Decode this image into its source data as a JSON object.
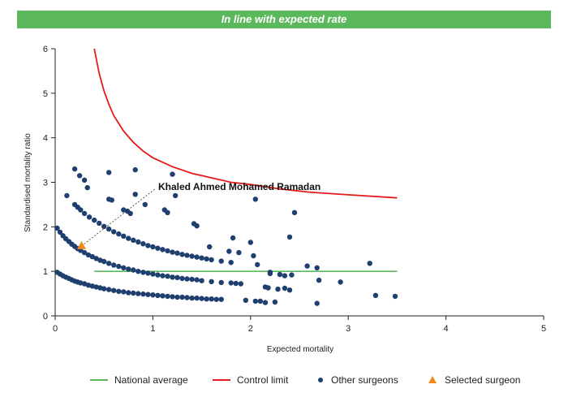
{
  "banner": {
    "text": "In line with expected rate",
    "color": "#5cb85c"
  },
  "chart_data": {
    "type": "scatter",
    "xlabel": "Expected mortality",
    "ylabel": "Standardised mortality ratio",
    "xlim": [
      0,
      5
    ],
    "ylim": [
      0,
      6
    ],
    "xticks": [
      "0",
      "1",
      "2",
      "3",
      "4",
      "5"
    ],
    "yticks": [
      "0",
      "1",
      "2",
      "3",
      "4",
      "5",
      "6"
    ],
    "grid": false,
    "legend_placement": "bottom",
    "annotation": {
      "text": "Khaled Ahmed Mohamed Ramadan",
      "x": 0.27,
      "y": 1.57
    },
    "series": [
      {
        "name": "National average",
        "kind": "line",
        "color": "#5cb85c",
        "x": [
          0.4,
          3.5
        ],
        "y": [
          1.0,
          1.0
        ]
      },
      {
        "name": "Control limit",
        "kind": "line",
        "color": "#e31b1b",
        "x": [
          0.4,
          0.45,
          0.5,
          0.55,
          0.6,
          0.7,
          0.8,
          0.9,
          1.0,
          1.2,
          1.4,
          1.6,
          1.8,
          2.0,
          2.3,
          2.6,
          3.0,
          3.5
        ],
        "y": [
          6.0,
          5.45,
          5.05,
          4.75,
          4.5,
          4.15,
          3.9,
          3.7,
          3.55,
          3.35,
          3.2,
          3.1,
          3.0,
          2.95,
          2.85,
          2.78,
          2.72,
          2.65
        ]
      },
      {
        "name": "Other surgeons",
        "kind": "scatter",
        "color": "#1f3f6f",
        "x": [
          0.02,
          0.05,
          0.08,
          0.11,
          0.14,
          0.17,
          0.2,
          0.23,
          0.26,
          0.3,
          0.34,
          0.38,
          0.42,
          0.46,
          0.5,
          0.55,
          0.6,
          0.65,
          0.7,
          0.75,
          0.8,
          0.85,
          0.9,
          0.95,
          1.0,
          1.05,
          1.1,
          1.15,
          1.2,
          1.25,
          1.3,
          1.35,
          1.4,
          1.45,
          1.5,
          1.55,
          1.6,
          1.65,
          1.7,
          0.02,
          0.05,
          0.08,
          0.11,
          0.14,
          0.17,
          0.2,
          0.23,
          0.26,
          0.3,
          0.34,
          0.38,
          0.42,
          0.46,
          0.5,
          0.55,
          0.6,
          0.65,
          0.7,
          0.75,
          0.8,
          0.85,
          0.9,
          0.95,
          1.0,
          1.05,
          1.1,
          1.15,
          1.2,
          1.25,
          1.3,
          1.35,
          1.4,
          1.45,
          1.5,
          1.6,
          1.7,
          1.8,
          1.85,
          1.9,
          0.2,
          0.23,
          0.26,
          0.3,
          0.35,
          0.4,
          0.45,
          0.5,
          0.55,
          0.6,
          0.65,
          0.7,
          0.75,
          0.8,
          0.85,
          0.9,
          0.95,
          1.0,
          1.05,
          1.1,
          1.15,
          1.2,
          1.25,
          1.3,
          1.35,
          1.4,
          1.45,
          1.5,
          1.55,
          1.6,
          1.7,
          1.8,
          0.2,
          0.25,
          0.3,
          0.55,
          0.82,
          1.2,
          0.12,
          0.82,
          1.23,
          0.33,
          0.55,
          0.58,
          0.7,
          0.74,
          0.77,
          0.92,
          1.12,
          1.15,
          1.42,
          1.45,
          1.58,
          1.78,
          1.88,
          2.03,
          1.82,
          2.0,
          2.05,
          2.45,
          2.4,
          2.07,
          2.2,
          2.2,
          2.3,
          2.35,
          2.42,
          2.58,
          2.68,
          2.7,
          2.92,
          3.22,
          3.28,
          3.48,
          2.15,
          2.18,
          2.28,
          2.35,
          2.4,
          2.68,
          1.95,
          2.05,
          2.1,
          2.15,
          2.25
        ],
        "y": [
          0.98,
          0.94,
          0.9,
          0.87,
          0.84,
          0.81,
          0.78,
          0.76,
          0.74,
          0.72,
          0.69,
          0.67,
          0.65,
          0.63,
          0.61,
          0.59,
          0.57,
          0.55,
          0.54,
          0.52,
          0.51,
          0.5,
          0.49,
          0.48,
          0.47,
          0.46,
          0.45,
          0.44,
          0.43,
          0.42,
          0.42,
          0.41,
          0.4,
          0.4,
          0.39,
          0.38,
          0.38,
          0.37,
          0.37,
          1.97,
          1.88,
          1.8,
          1.73,
          1.67,
          1.61,
          1.56,
          1.51,
          1.47,
          1.42,
          1.37,
          1.33,
          1.29,
          1.25,
          1.22,
          1.18,
          1.14,
          1.11,
          1.08,
          1.05,
          1.03,
          1.0,
          0.98,
          0.96,
          0.94,
          0.92,
          0.9,
          0.89,
          0.87,
          0.86,
          0.84,
          0.83,
          0.82,
          0.81,
          0.79,
          0.77,
          0.75,
          0.74,
          0.73,
          0.72,
          2.5,
          2.44,
          2.38,
          2.3,
          2.22,
          2.15,
          2.08,
          2.01,
          1.95,
          1.89,
          1.84,
          1.79,
          1.74,
          1.7,
          1.66,
          1.62,
          1.58,
          1.55,
          1.52,
          1.49,
          1.46,
          1.43,
          1.41,
          1.38,
          1.36,
          1.34,
          1.32,
          1.3,
          1.28,
          1.26,
          1.23,
          1.2,
          3.3,
          3.15,
          3.05,
          3.22,
          3.28,
          3.18,
          2.7,
          2.73,
          2.7,
          2.88,
          2.62,
          2.6,
          2.38,
          2.35,
          2.3,
          2.5,
          2.38,
          2.32,
          2.07,
          2.02,
          1.55,
          1.45,
          1.42,
          1.35,
          1.75,
          1.65,
          2.62,
          2.32,
          1.77,
          1.15,
          0.98,
          0.95,
          0.93,
          0.9,
          0.92,
          1.12,
          1.08,
          0.8,
          0.76,
          1.18,
          0.46,
          0.44,
          0.65,
          0.63,
          0.6,
          0.62,
          0.58,
          0.28,
          0.35,
          0.33,
          0.33,
          0.3,
          0.31
        ]
      },
      {
        "name": "Selected surgeon",
        "kind": "marker",
        "color": "#f08a1c",
        "x": [
          0.27
        ],
        "y": [
          1.57
        ]
      }
    ]
  }
}
